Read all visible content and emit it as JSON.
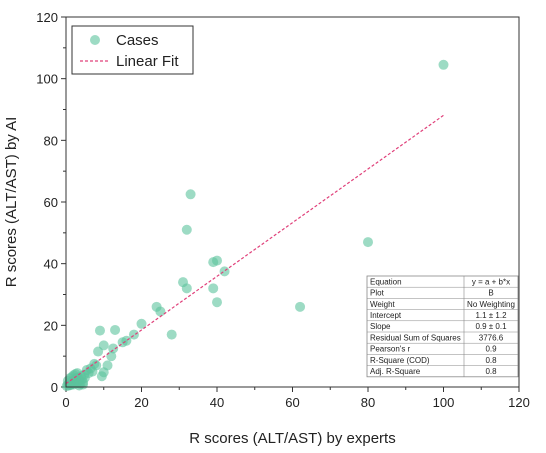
{
  "colors": {
    "points": "#5cc39d",
    "fit_line": "#e0407a",
    "axis": "#333333",
    "table_border": "#888888"
  },
  "chart_data": {
    "type": "scatter",
    "xlabel": "R scores (ALT/AST) by experts",
    "ylabel": "R scores (ALT/AST) by AI",
    "xlim": [
      0,
      120
    ],
    "ylim": [
      0,
      120
    ],
    "x_ticks": [
      0,
      20,
      40,
      60,
      80,
      100,
      120
    ],
    "y_ticks": [
      0,
      20,
      40,
      60,
      80,
      100,
      120
    ],
    "grid": false,
    "legend": {
      "placement": "top-left",
      "entries": [
        {
          "label": "Cases",
          "marker": "circle"
        },
        {
          "label": "Linear Fit",
          "marker": "dashed-line"
        }
      ]
    },
    "series": [
      {
        "name": "Cases",
        "points": [
          [
            0.2,
            0.3
          ],
          [
            0.5,
            0.8
          ],
          [
            0.8,
            0.5
          ],
          [
            1.0,
            1.5
          ],
          [
            1.2,
            0.6
          ],
          [
            1.5,
            1.0
          ],
          [
            1.8,
            2.0
          ],
          [
            2.0,
            0.8
          ],
          [
            2.2,
            1.5
          ],
          [
            2.5,
            2.5
          ],
          [
            2.8,
            1.2
          ],
          [
            3.0,
            3.0
          ],
          [
            3.2,
            1.8
          ],
          [
            3.5,
            2.2
          ],
          [
            3.8,
            1.0
          ],
          [
            4.0,
            3.5
          ],
          [
            4.2,
            2.5
          ],
          [
            4.5,
            1.5
          ],
          [
            4.8,
            4.0
          ],
          [
            5.0,
            3.0
          ],
          [
            5.5,
            5.5
          ],
          [
            6.0,
            4.5
          ],
          [
            6.5,
            6.0
          ],
          [
            7.0,
            5.0
          ],
          [
            7.5,
            7.5
          ],
          [
            2.0,
            3.8
          ],
          [
            3.0,
            4.5
          ],
          [
            1.0,
            2.8
          ],
          [
            2.5,
            4.2
          ],
          [
            0.5,
            2.0
          ],
          [
            1.5,
            3.2
          ],
          [
            3.5,
            0.5
          ],
          [
            4.5,
            0.8
          ],
          [
            8.0,
            7.0
          ],
          [
            8.5,
            11.5
          ],
          [
            9.0,
            18.3
          ],
          [
            9.5,
            3.5
          ],
          [
            10.0,
            13.5
          ],
          [
            10.0,
            4.8
          ],
          [
            11.0,
            7.0
          ],
          [
            12.0,
            10.0
          ],
          [
            12.5,
            12.5
          ],
          [
            13.0,
            18.5
          ],
          [
            15.0,
            14.5
          ],
          [
            16.0,
            15.0
          ],
          [
            18.0,
            17.0
          ],
          [
            20.0,
            20.5
          ],
          [
            24.0,
            26.0
          ],
          [
            25.0,
            24.5
          ],
          [
            28.0,
            17.0
          ],
          [
            31.0,
            34.0
          ],
          [
            32.0,
            32.0
          ],
          [
            32.0,
            51.0
          ],
          [
            33.0,
            62.5
          ],
          [
            39.0,
            40.5
          ],
          [
            39.0,
            32.0
          ],
          [
            40.0,
            41.0
          ],
          [
            40.0,
            27.5
          ],
          [
            42.0,
            37.5
          ],
          [
            62.0,
            26.0
          ],
          [
            80.0,
            47.0
          ],
          [
            100.0,
            104.5
          ]
        ]
      },
      {
        "name": "Linear Fit",
        "type": "line",
        "intercept": 1.1,
        "slope": 0.87,
        "x_range": [
          0,
          100
        ]
      }
    ],
    "fit_table": [
      {
        "label": "Equation",
        "value": "y = a + b*x"
      },
      {
        "label": "Plot",
        "value": "B"
      },
      {
        "label": "Weight",
        "value": "No Weighting"
      },
      {
        "label": "Intercept",
        "value": "1.1 ± 1.2"
      },
      {
        "label": "Slope",
        "value": "0.9 ± 0.1"
      },
      {
        "label": "Residual Sum of Squares",
        "value": "3776.6"
      },
      {
        "label": "Pearson's r",
        "value": "0.9"
      },
      {
        "label": "R-Square (COD)",
        "value": "0.8"
      },
      {
        "label": "Adj. R-Square",
        "value": "0.8"
      }
    ]
  }
}
